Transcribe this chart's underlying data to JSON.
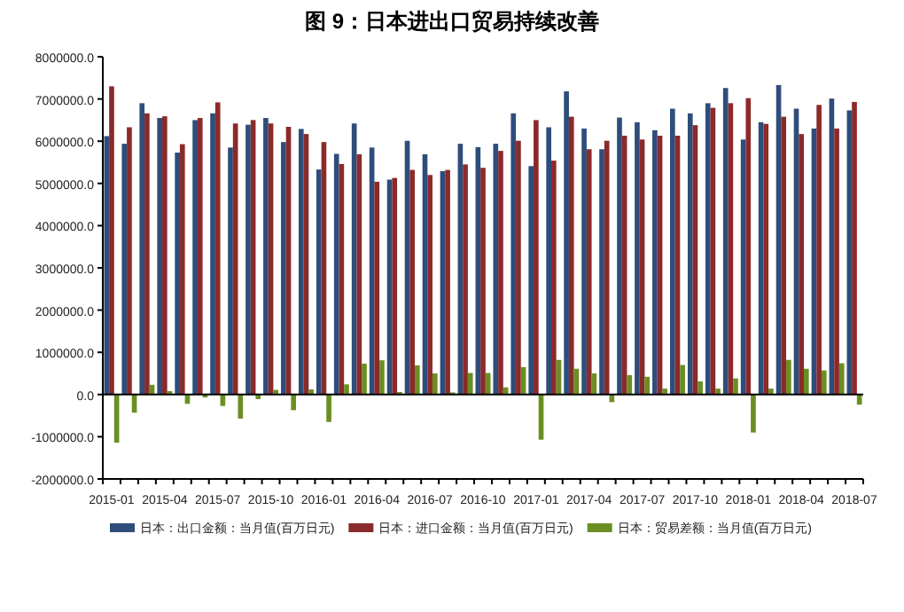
{
  "chart_data": {
    "type": "bar",
    "title": "图 9：日本进出口贸易持续改善",
    "categories": [
      "2015-01",
      null,
      null,
      "2015-04",
      null,
      null,
      "2015-07",
      null,
      null,
      "2015-10",
      null,
      null,
      "2016-01",
      null,
      null,
      "2016-04",
      null,
      null,
      "2016-07",
      null,
      null,
      "2016-10",
      null,
      null,
      "2017-01",
      null,
      null,
      "2017-04",
      null,
      null,
      "2017-07",
      null,
      null,
      "2017-10",
      null,
      null,
      "2018-01",
      null,
      null,
      "2018-04",
      null,
      null,
      "2018-07"
    ],
    "series": [
      {
        "name": "日本：出口金额：当月值(百万日元)",
        "color": "#2e4d7b",
        "values": [
          6120000,
          5940000,
          6900000,
          6550000,
          5730000,
          6500000,
          6660000,
          5850000,
          6390000,
          6550000,
          5980000,
          6290000,
          5330000,
          5700000,
          6420000,
          5850000,
          5090000,
          6010000,
          5690000,
          5290000,
          5940000,
          5860000,
          5940000,
          6660000,
          5410000,
          6330000,
          7180000,
          6300000,
          5810000,
          6560000,
          6450000,
          6260000,
          6770000,
          6660000,
          6900000,
          7260000,
          6040000,
          6450000,
          7330000,
          6770000,
          6300000,
          7010000,
          6730000
        ]
      },
      {
        "name": "日本：进口金额：当月值(百万日元)",
        "color": "#8b2a2a",
        "values": [
          7300000,
          6330000,
          6660000,
          6590000,
          5930000,
          6550000,
          6920000,
          6420000,
          6500000,
          6420000,
          6340000,
          6170000,
          5980000,
          5460000,
          5690000,
          5040000,
          5130000,
          5320000,
          5200000,
          5320000,
          5450000,
          5370000,
          5770000,
          6010000,
          6500000,
          5540000,
          6580000,
          5810000,
          6010000,
          6130000,
          6040000,
          6130000,
          6130000,
          6380000,
          6790000,
          6900000,
          7020000,
          6410000,
          6580000,
          6170000,
          6860000,
          6300000,
          6930000
        ]
      },
      {
        "name": "日本：贸易差额：当月值(百万日元)",
        "color": "#6b8e23",
        "values": [
          -1140000,
          -430000,
          230000,
          80000,
          -220000,
          -70000,
          -270000,
          -570000,
          -110000,
          110000,
          -370000,
          120000,
          -650000,
          240000,
          730000,
          810000,
          60000,
          690000,
          500000,
          50000,
          510000,
          510000,
          170000,
          650000,
          -1070000,
          820000,
          610000,
          500000,
          -180000,
          460000,
          420000,
          140000,
          700000,
          310000,
          140000,
          380000,
          -900000,
          140000,
          820000,
          610000,
          570000,
          740000,
          -240000
        ]
      }
    ],
    "ylim": [
      -2000000,
      8000000
    ],
    "yticks": [
      {
        "value": -2000000,
        "label": "-2000000.0"
      },
      {
        "value": -1000000,
        "label": "-1000000.0"
      },
      {
        "value": 0,
        "label": "0.0"
      },
      {
        "value": 1000000,
        "label": "1000000.0"
      },
      {
        "value": 2000000,
        "label": "2000000.0"
      },
      {
        "value": 3000000,
        "label": "3000000.0"
      },
      {
        "value": 4000000,
        "label": "4000000.0"
      },
      {
        "value": 5000000,
        "label": "5000000.0"
      },
      {
        "value": 6000000,
        "label": "6000000.0"
      },
      {
        "value": 7000000,
        "label": "7000000.0"
      },
      {
        "value": 8000000,
        "label": "8000000.0"
      }
    ],
    "legend": "bottom"
  }
}
